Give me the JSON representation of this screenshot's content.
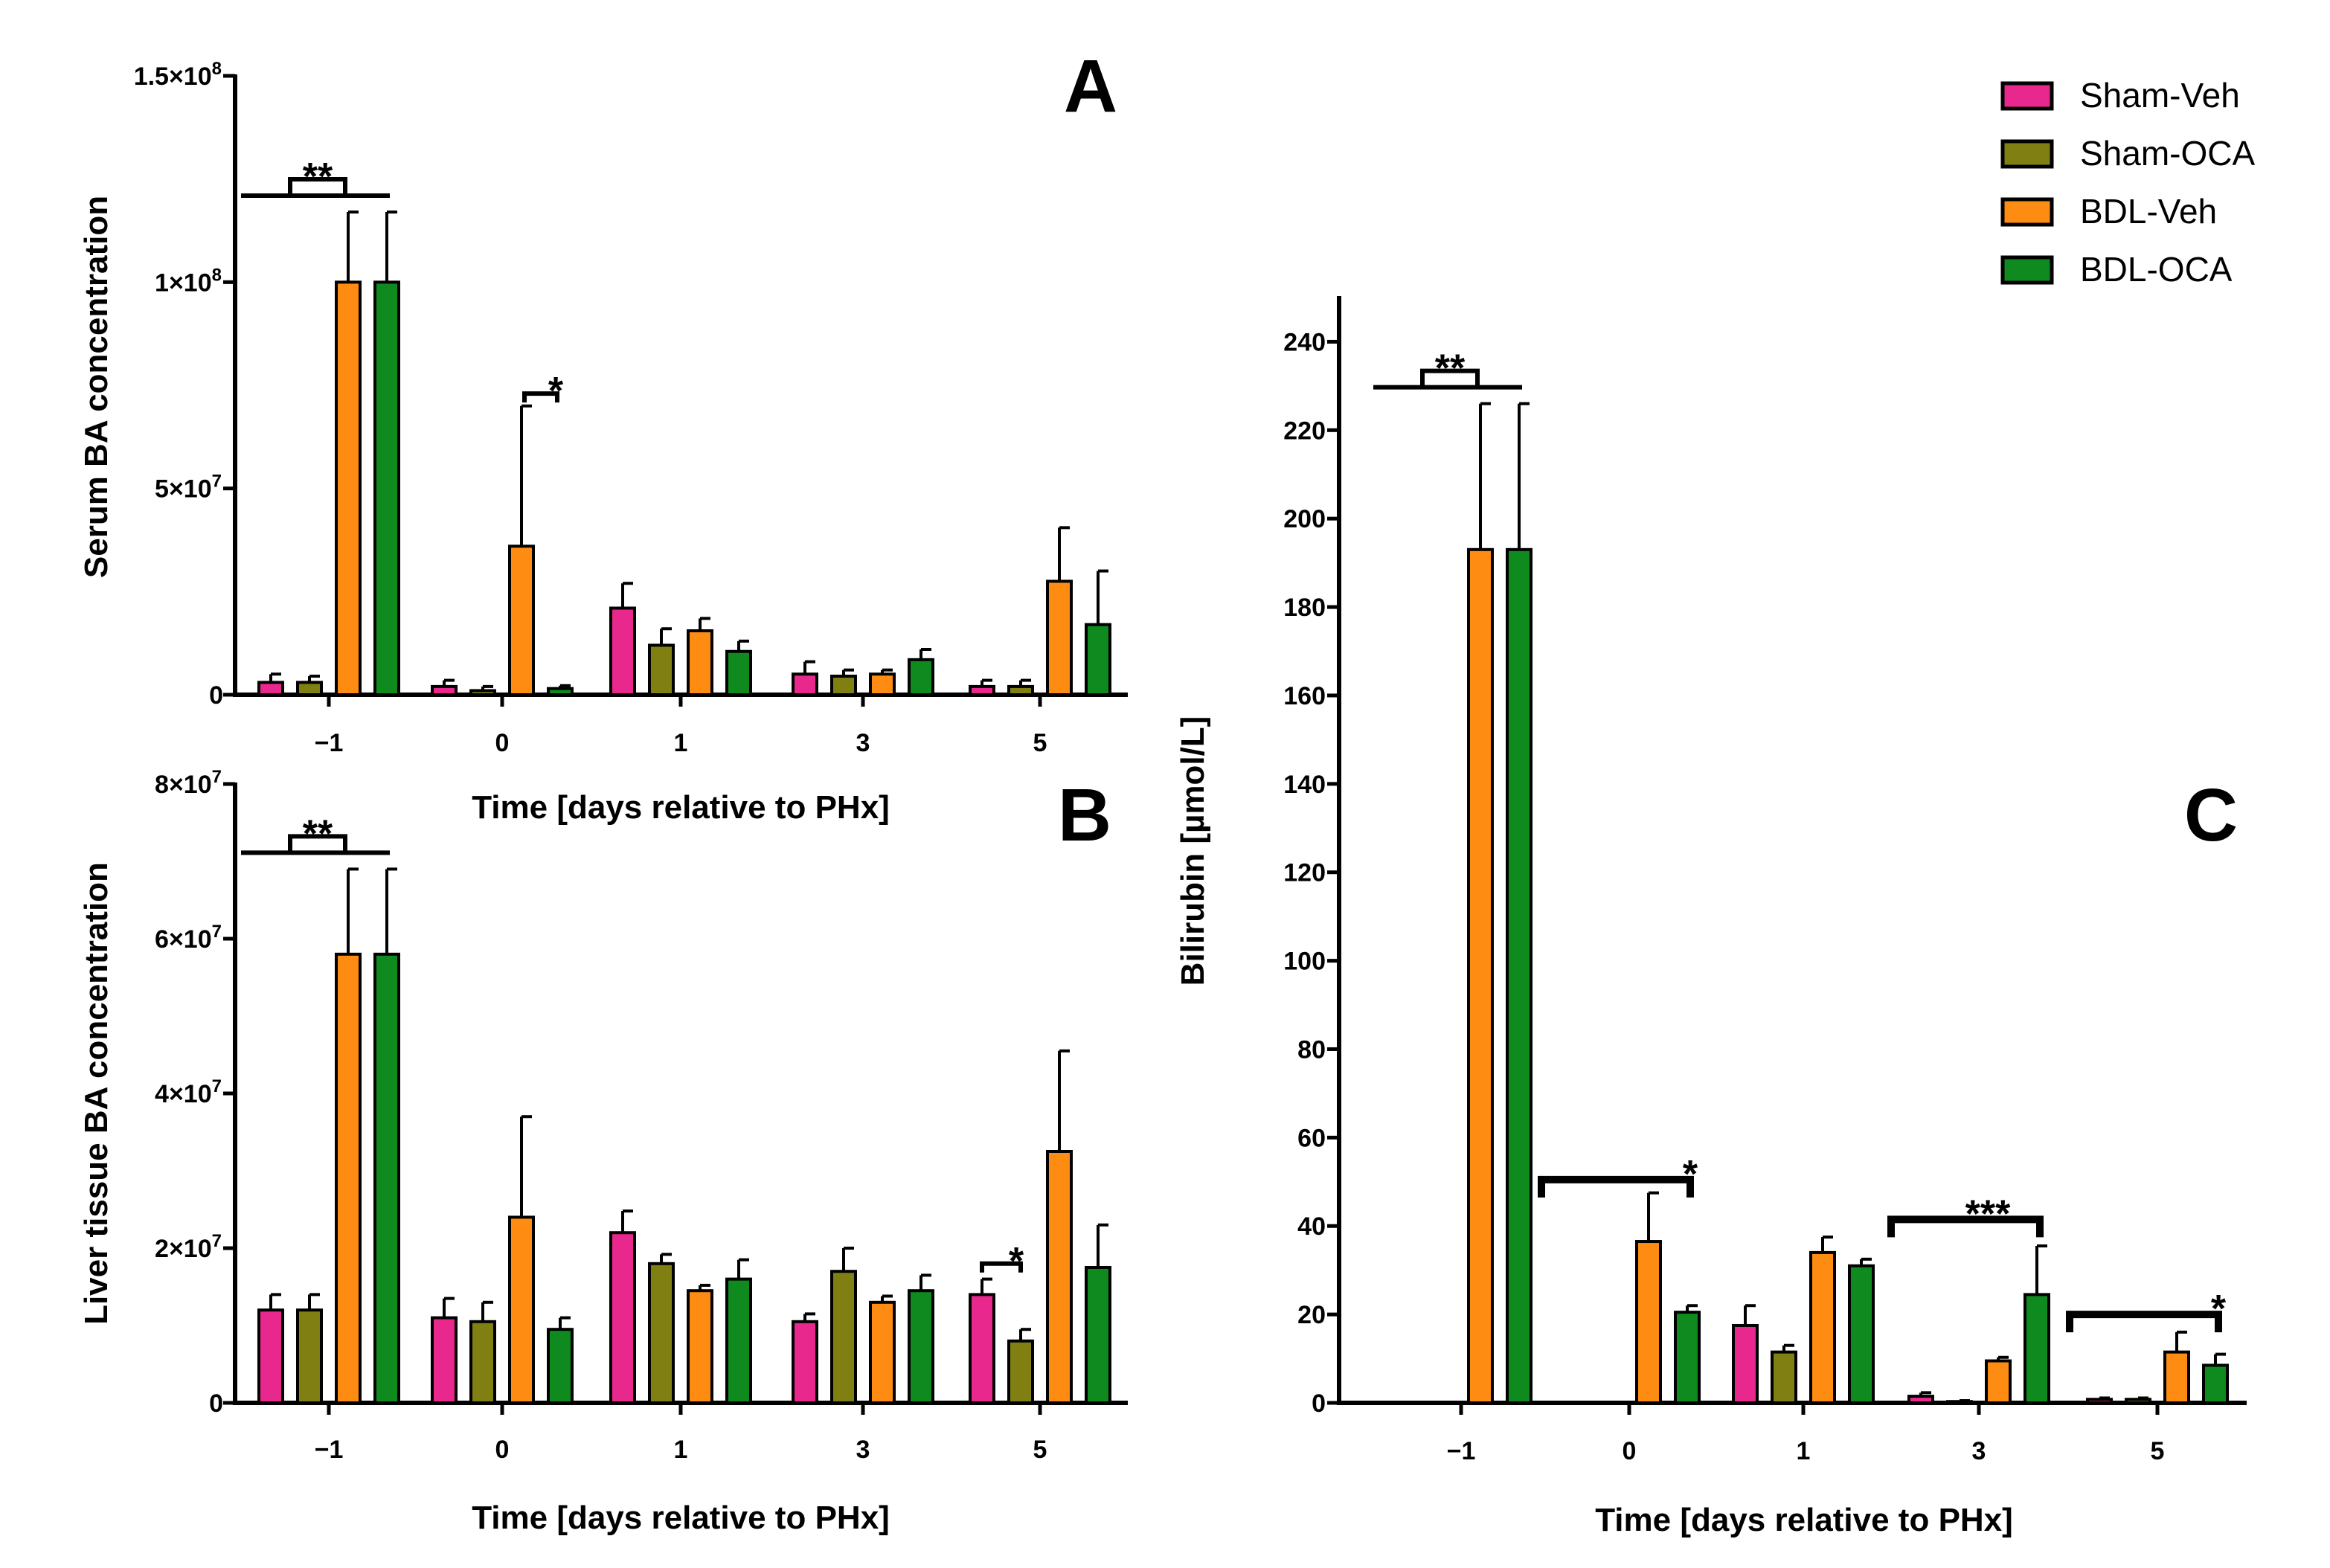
{
  "legend": [
    {
      "name": "Sham-Veh",
      "color": "#e8288c"
    },
    {
      "name": "Sham-OCA",
      "color": "#7f7f12"
    },
    {
      "name": "BDL-Veh",
      "color": "#ff8c12"
    },
    {
      "name": "BDL-OCA",
      "color": "#0f8a1e"
    }
  ],
  "chart_data": [
    {
      "panel": "A",
      "type": "bar",
      "xlabel": "Time [days relative to PHx]",
      "ylabel": "Serum BA concentration",
      "categories": [
        "−1",
        "0",
        "1",
        "3",
        "5"
      ],
      "ylim": [
        0,
        150000000
      ],
      "yticks": [
        {
          "value": 0,
          "label": "0"
        },
        {
          "value": 50000000,
          "label": "5×10",
          "exp": "7"
        },
        {
          "value": 100000000,
          "label": "1×10",
          "exp": "8"
        },
        {
          "value": 150000000,
          "label": "1.5×10",
          "exp": "8"
        }
      ],
      "series": [
        {
          "name": "Sham-Veh",
          "values": [
            3000000,
            2000000,
            21000000,
            5000000,
            2000000
          ],
          "errors": [
            2000000,
            1500000,
            6000000,
            3000000,
            1500000
          ]
        },
        {
          "name": "Sham-OCA",
          "values": [
            3000000,
            1000000,
            12000000,
            4500000,
            2000000
          ],
          "errors": [
            1500000,
            1000000,
            4000000,
            1500000,
            1500000
          ]
        },
        {
          "name": "BDL-Veh",
          "values": [
            100000000,
            36000000,
            15500000,
            5000000,
            27500000
          ],
          "errors": [
            17000000,
            34000000,
            3000000,
            1000000,
            13000000
          ]
        },
        {
          "name": "BDL-OCA",
          "values": [
            100000000,
            1500000,
            10500000,
            8500000,
            17000000
          ],
          "errors": [
            17000000,
            700000,
            2500000,
            2500000,
            13000000
          ]
        }
      ],
      "significance": [
        {
          "label": "**",
          "cat": 0,
          "type": "bracket-on-line"
        },
        {
          "label": "*",
          "cat": 1,
          "type": "small-bracket",
          "level": 73000000
        }
      ]
    },
    {
      "panel": "B",
      "type": "bar",
      "xlabel": "Time [days relative to PHx]",
      "ylabel": "Liver tissue BA concentration",
      "categories": [
        "−1",
        "0",
        "1",
        "3",
        "5"
      ],
      "ylim": [
        0,
        80000000
      ],
      "yticks": [
        {
          "value": 0,
          "label": "0"
        },
        {
          "value": 20000000,
          "label": "2×10",
          "exp": "7"
        },
        {
          "value": 40000000,
          "label": "4×10",
          "exp": "7"
        },
        {
          "value": 60000000,
          "label": "6×10",
          "exp": "7"
        },
        {
          "value": 80000000,
          "label": "8×10",
          "exp": "7"
        }
      ],
      "series": [
        {
          "name": "Sham-Veh",
          "values": [
            12000000,
            11000000,
            22000000,
            10500000,
            14000000
          ],
          "errors": [
            2000000,
            2500000,
            2800000,
            1000000,
            2000000
          ]
        },
        {
          "name": "Sham-OCA",
          "values": [
            12000000,
            10500000,
            18000000,
            17000000,
            8000000
          ],
          "errors": [
            2000000,
            2500000,
            1200000,
            3000000,
            1500000
          ]
        },
        {
          "name": "BDL-Veh",
          "values": [
            58000000,
            24000000,
            14500000,
            13000000,
            32500000
          ],
          "errors": [
            11000000,
            13000000,
            700000,
            800000,
            13000000
          ]
        },
        {
          "name": "BDL-OCA",
          "values": [
            58000000,
            9500000,
            16000000,
            14500000,
            17500000
          ],
          "errors": [
            11000000,
            1500000,
            2500000,
            2000000,
            5500000
          ]
        }
      ],
      "significance": [
        {
          "label": "**",
          "cat": 0,
          "type": "bracket-on-line"
        },
        {
          "label": "*",
          "cat": 4,
          "type": "small-bracket",
          "level": 18000000
        }
      ]
    },
    {
      "panel": "C",
      "type": "bar",
      "xlabel": "Time [days relative to PHx]",
      "ylabel": "Bilirubin [µmol/L]",
      "categories": [
        "−1",
        "0",
        "1",
        "3",
        "5"
      ],
      "ylim": [
        0,
        250
      ],
      "yticks": [
        {
          "value": 0,
          "label": "0"
        },
        {
          "value": 20,
          "label": "20"
        },
        {
          "value": 40,
          "label": "40"
        },
        {
          "value": 60,
          "label": "60"
        },
        {
          "value": 80,
          "label": "80"
        },
        {
          "value": 100,
          "label": "100"
        },
        {
          "value": 120,
          "label": "120"
        },
        {
          "value": 140,
          "label": "140"
        },
        {
          "value": 160,
          "label": "160"
        },
        {
          "value": 180,
          "label": "180"
        },
        {
          "value": 200,
          "label": "200"
        },
        {
          "value": 220,
          "label": "220"
        },
        {
          "value": 240,
          "label": "240"
        }
      ],
      "series": [
        {
          "name": "Sham-Veh",
          "values": [
            0,
            0,
            17.5,
            1.5,
            0.8
          ],
          "errors": [
            0,
            0,
            4.5,
            0.8,
            0.3
          ]
        },
        {
          "name": "Sham-OCA",
          "values": [
            0,
            0,
            11.5,
            0.3,
            0.8
          ],
          "errors": [
            0,
            0,
            1.5,
            0.2,
            0.3
          ]
        },
        {
          "name": "BDL-Veh",
          "values": [
            193,
            36.5,
            34,
            9.5,
            11.5
          ],
          "errors": [
            33,
            11,
            3.5,
            0.8,
            4.5
          ]
        },
        {
          "name": "BDL-OCA",
          "values": [
            193,
            20.5,
            31,
            24.5,
            8.5
          ],
          "errors": [
            33,
            1.5,
            1.5,
            11,
            2.5
          ]
        }
      ],
      "significance": [
        {
          "label": "**",
          "cat": 0,
          "type": "bracket-on-line"
        },
        {
          "label": "*",
          "cat": 1,
          "type": "wide-bracket",
          "level": 50.5
        },
        {
          "label": "***",
          "cat": 3,
          "type": "wide-bracket",
          "level": 41.5
        },
        {
          "label": "*",
          "cat": 4,
          "type": "wide-bracket",
          "level": 20
        }
      ]
    }
  ]
}
